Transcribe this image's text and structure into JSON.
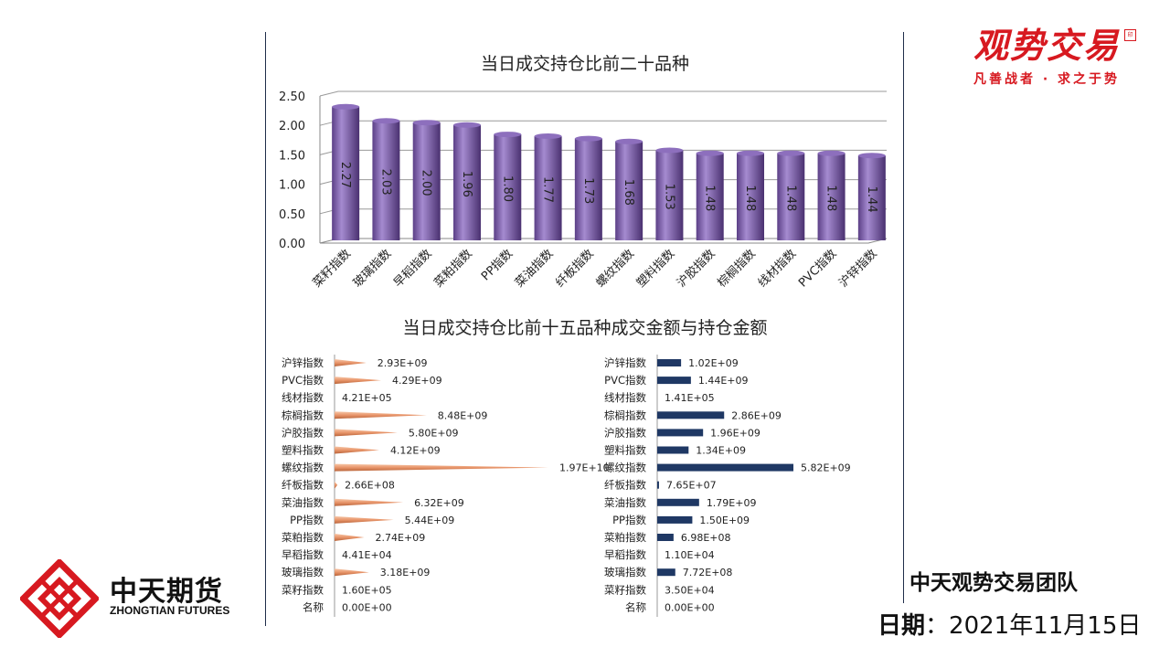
{
  "chart_data": [
    {
      "type": "bar",
      "title": "当日成交持仓比前二十品种",
      "categories": [
        "菜籽指数",
        "玻璃指数",
        "早稻指数",
        "菜粕指数",
        "PP指数",
        "菜油指数",
        "纤板指数",
        "螺纹指数",
        "塑料指数",
        "沪胶指数",
        "棕榈指数",
        "线材指数",
        "PVC指数",
        "沪锌指数"
      ],
      "values": [
        2.27,
        2.03,
        2.0,
        1.96,
        1.8,
        1.77,
        1.73,
        1.68,
        1.53,
        1.48,
        1.48,
        1.48,
        1.48,
        1.44
      ],
      "labels": [
        "2.27",
        "2.03",
        "2.00",
        "1.96",
        "1.80",
        "1.77",
        "1.73",
        "1.68",
        "1.53",
        "1.48",
        "1.48",
        "1.48",
        "1.48",
        "1.44"
      ],
      "yticks": [
        "0.00",
        "0.50",
        "1.00",
        "1.50",
        "2.00",
        "2.50"
      ],
      "ylim": [
        0,
        2.5
      ],
      "grid": true,
      "color": "#7b5aa6"
    },
    {
      "type": "bar",
      "orientation": "horizontal",
      "title": "当日成交持仓比前十五品种成交金额与持仓金额",
      "name": "成交金额",
      "categories": [
        "沪锌指数",
        "PVC指数",
        "线材指数",
        "棕榈指数",
        "沪胶指数",
        "塑料指数",
        "螺纹指数",
        "纤板指数",
        "菜油指数",
        "PP指数",
        "菜粕指数",
        "早稻指数",
        "玻璃指数",
        "菜籽指数",
        "名称"
      ],
      "values": [
        2930000000.0,
        4290000000.0,
        421000.0,
        8480000000.0,
        5800000000.0,
        4120000000.0,
        19700000000.0,
        266000000.0,
        6320000000.0,
        5440000000.0,
        2740000000.0,
        44100.0,
        3180000000.0,
        160000.0,
        0
      ],
      "labels": [
        "2.93E+09",
        "4.29E+09",
        "4.21E+05",
        "8.48E+09",
        "5.80E+09",
        "4.12E+09",
        "1.97E+10",
        "2.66E+08",
        "6.32E+09",
        "5.44E+09",
        "2.74E+09",
        "4.41E+04",
        "3.18E+09",
        "1.60E+05",
        "0.00E+00"
      ],
      "color": "#e8956a"
    },
    {
      "type": "bar",
      "orientation": "horizontal",
      "name": "持仓金额",
      "categories": [
        "沪锌指数",
        "PVC指数",
        "线材指数",
        "棕榈指数",
        "沪胶指数",
        "塑料指数",
        "螺纹指数",
        "纤板指数",
        "菜油指数",
        "PP指数",
        "菜粕指数",
        "早稻指数",
        "玻璃指数",
        "菜籽指数",
        "名称"
      ],
      "values": [
        1020000000.0,
        1440000000.0,
        141000.0,
        2860000000.0,
        1960000000.0,
        1340000000.0,
        5820000000.0,
        76500000.0,
        1790000000.0,
        1500000000.0,
        698000000.0,
        11000.0,
        772000000.0,
        35000.0,
        0
      ],
      "labels": [
        "1.02E+09",
        "1.44E+09",
        "1.41E+05",
        "2.86E+09",
        "1.96E+09",
        "1.34E+09",
        "5.82E+09",
        "7.65E+07",
        "1.79E+09",
        "1.50E+09",
        "6.98E+08",
        "1.10E+04",
        "7.72E+08",
        "3.50E+04",
        "0.00E+00"
      ],
      "color": "#1f3864"
    }
  ],
  "brand": {
    "title": "观势交易",
    "slogan": "凡善战者 · 求之于势",
    "seal": "印"
  },
  "logo": {
    "cn": "中天期货",
    "en": "ZHONGTIAN FUTURES"
  },
  "team": "中天观势交易团队",
  "date": {
    "label": "日期",
    "sep": "：",
    "value": "2021年11月15日"
  }
}
